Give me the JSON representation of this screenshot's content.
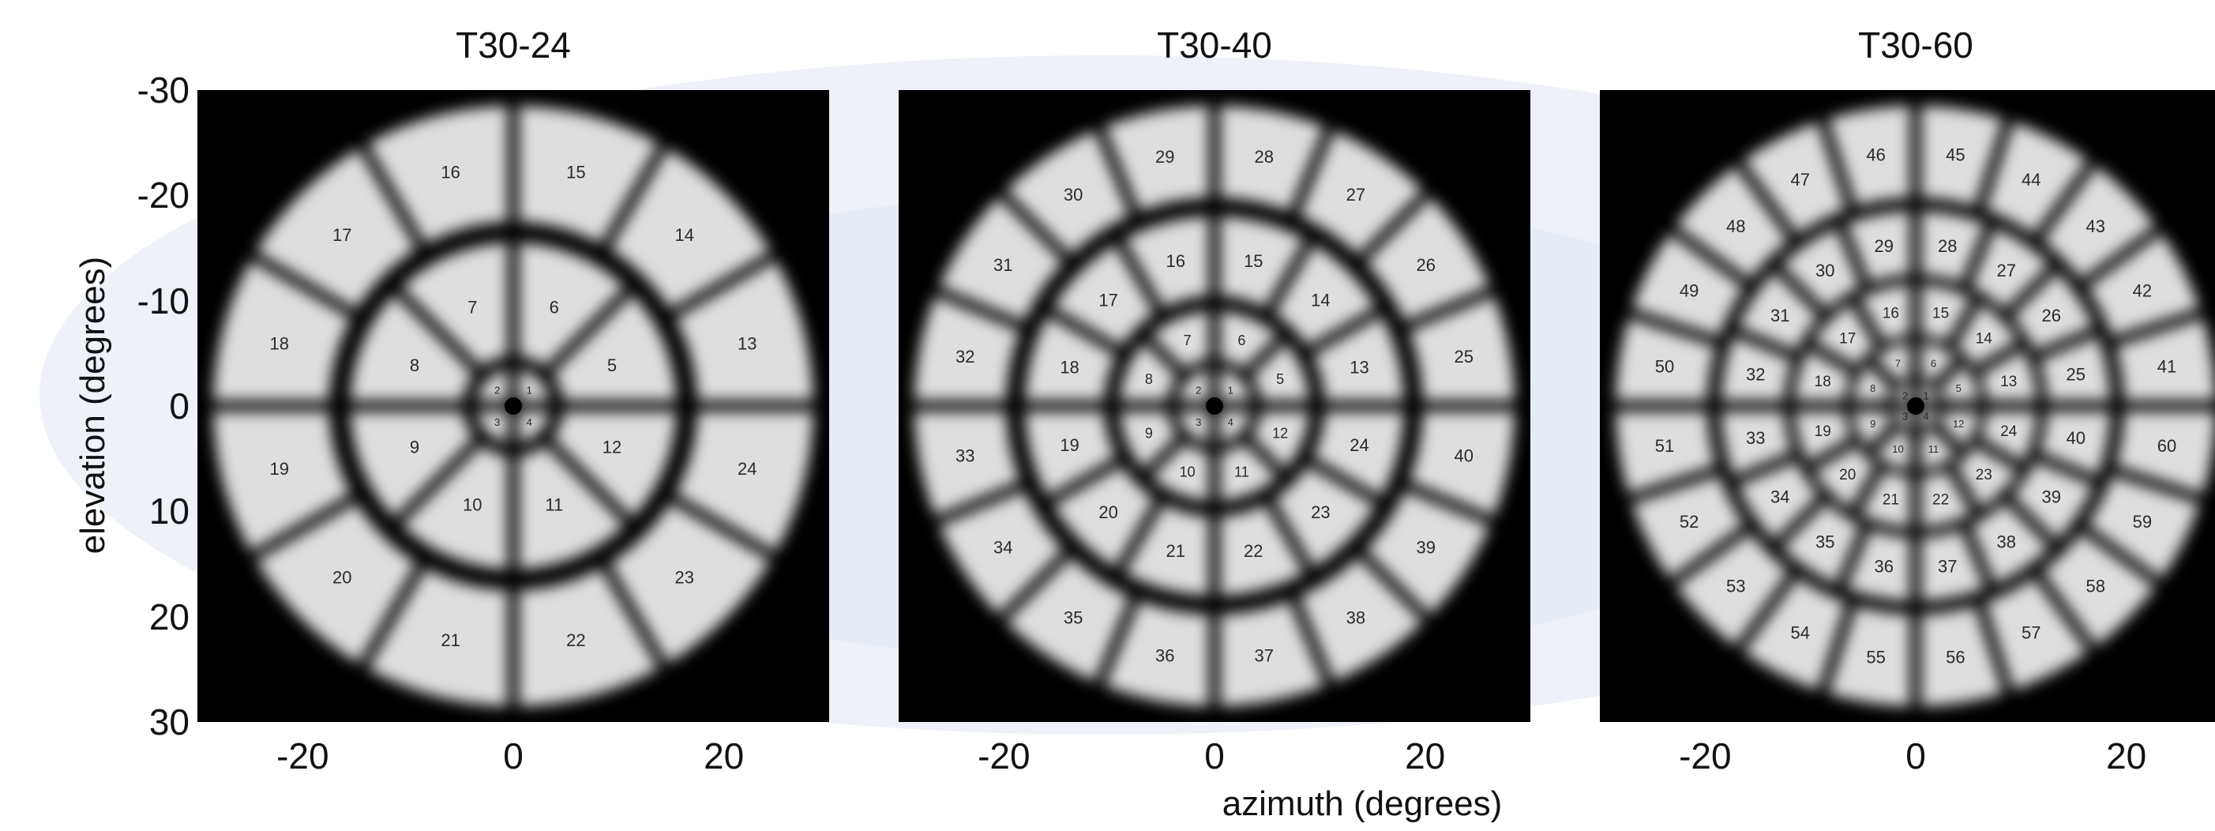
{
  "colors": {
    "background": "#ffffff",
    "watermark": "#e8eef6",
    "panel_background": "#000000",
    "sector_fill": "#dedede",
    "sector_label": "#2a2a2a",
    "axis_text": "#111111"
  },
  "axes": {
    "ylabel": "elevation (degrees)",
    "xlabel": "azimuth (degrees)",
    "yticks": [
      "-30",
      "-20",
      "-10",
      "0",
      "10",
      "20",
      "30"
    ],
    "xticks": [
      "-20",
      "0",
      "20"
    ],
    "xlim": [
      -30,
      30
    ],
    "ylim": [
      -30,
      30
    ]
  },
  "panels": [
    {
      "title": "T30-24",
      "rings": [
        {
          "r_inner": 0.8,
          "r_outer": 3.5,
          "count": 4,
          "labels": [
            "1",
            "2",
            "3",
            "4"
          ]
        },
        {
          "r_inner": 4.8,
          "r_outer": 15.5,
          "count": 8,
          "labels": [
            "5",
            "6",
            "7",
            "8",
            "9",
            "10",
            "11",
            "12"
          ]
        },
        {
          "r_inner": 17.5,
          "r_outer": 28.5,
          "count": 12,
          "labels": [
            "13",
            "14",
            "15",
            "16",
            "17",
            "18",
            "19",
            "20",
            "21",
            "22",
            "23",
            "24"
          ]
        }
      ]
    },
    {
      "title": "T30-40",
      "rings": [
        {
          "r_inner": 0.8,
          "r_outer": 3.5,
          "count": 4,
          "labels": [
            "1",
            "2",
            "3",
            "4"
          ]
        },
        {
          "r_inner": 4.5,
          "r_outer": 9.0,
          "count": 8,
          "labels": [
            "5",
            "6",
            "7",
            "8",
            "9",
            "10",
            "11",
            "12"
          ]
        },
        {
          "r_inner": 10.5,
          "r_outer": 18.0,
          "count": 12,
          "labels": [
            "13",
            "14",
            "15",
            "16",
            "17",
            "18",
            "19",
            "20",
            "21",
            "22",
            "23",
            "24"
          ]
        },
        {
          "r_inner": 19.8,
          "r_outer": 28.5,
          "count": 16,
          "labels": [
            "25",
            "26",
            "27",
            "28",
            "29",
            "30",
            "31",
            "32",
            "33",
            "34",
            "35",
            "36",
            "37",
            "38",
            "39",
            "40"
          ]
        }
      ]
    },
    {
      "title": "T30-60",
      "rings": [
        {
          "r_inner": 0.6,
          "r_outer": 2.2,
          "count": 4,
          "labels": [
            "1",
            "2",
            "3",
            "4"
          ]
        },
        {
          "r_inner": 2.8,
          "r_outer": 6.0,
          "count": 8,
          "labels": [
            "5",
            "6",
            "7",
            "8",
            "9",
            "10",
            "11",
            "12"
          ]
        },
        {
          "r_inner": 6.8,
          "r_outer": 11.5,
          "count": 12,
          "labels": [
            "13",
            "14",
            "15",
            "16",
            "17",
            "18",
            "19",
            "20",
            "21",
            "22",
            "23",
            "24"
          ]
        },
        {
          "r_inner": 12.5,
          "r_outer": 18.5,
          "count": 16,
          "labels": [
            "25",
            "26",
            "27",
            "28",
            "29",
            "30",
            "31",
            "32",
            "33",
            "34",
            "35",
            "36",
            "37",
            "38",
            "39",
            "40"
          ]
        },
        {
          "r_inner": 19.8,
          "r_outer": 28.5,
          "count": 20,
          "labels": [
            "41",
            "42",
            "43",
            "44",
            "45",
            "46",
            "47",
            "48",
            "49",
            "50",
            "51",
            "52",
            "53",
            "54",
            "55",
            "56",
            "57",
            "58",
            "59",
            "60"
          ]
        }
      ]
    }
  ]
}
